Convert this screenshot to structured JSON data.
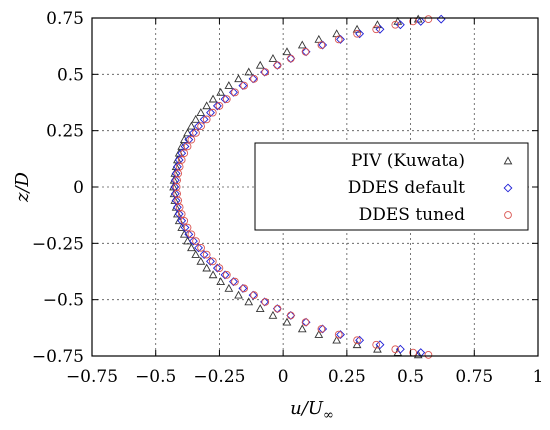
{
  "chart_data": {
    "type": "scatter",
    "title": "",
    "xlabel_main": "u/U",
    "xlabel_sub": "∞",
    "ylabel": "z/D",
    "xlim": [
      -0.75,
      1
    ],
    "ylim": [
      -0.75,
      0.75
    ],
    "x_ticks": [
      -0.75,
      -0.5,
      -0.25,
      0,
      0.25,
      0.5,
      0.75,
      1
    ],
    "x_tick_labels": [
      "−0.75",
      "−0.5",
      "−0.25",
      "0",
      "0.25",
      "0.5",
      "0.75",
      "1"
    ],
    "y_ticks": [
      -0.75,
      -0.5,
      -0.25,
      0,
      0.25,
      0.5,
      0.75
    ],
    "y_tick_labels": [
      "−0.75",
      "−0.5",
      "−0.25",
      "0",
      "0.25",
      "0.5",
      "0.75"
    ],
    "grid": true,
    "legend_position": "right",
    "series": [
      {
        "name": "PIV (Kuwata)",
        "marker": "triangle",
        "color": "#333333",
        "points": [
          [
            -0.43,
            0.0
          ],
          [
            -0.428,
            0.03
          ],
          [
            -0.428,
            -0.03
          ],
          [
            -0.425,
            0.06
          ],
          [
            -0.425,
            -0.06
          ],
          [
            -0.42,
            0.09
          ],
          [
            -0.42,
            -0.09
          ],
          [
            -0.415,
            0.12
          ],
          [
            -0.415,
            -0.12
          ],
          [
            -0.408,
            0.15
          ],
          [
            -0.408,
            -0.15
          ],
          [
            -0.398,
            0.18
          ],
          [
            -0.398,
            -0.18
          ],
          [
            -0.388,
            0.21
          ],
          [
            -0.388,
            -0.21
          ],
          [
            -0.375,
            0.24
          ],
          [
            -0.375,
            -0.24
          ],
          [
            -0.36,
            0.27
          ],
          [
            -0.36,
            -0.27
          ],
          [
            -0.343,
            0.3
          ],
          [
            -0.343,
            -0.3
          ],
          [
            -0.323,
            0.33
          ],
          [
            -0.323,
            -0.33
          ],
          [
            -0.3,
            0.36
          ],
          [
            -0.3,
            -0.36
          ],
          [
            -0.275,
            0.39
          ],
          [
            -0.275,
            -0.39
          ],
          [
            -0.245,
            0.42
          ],
          [
            -0.245,
            -0.42
          ],
          [
            -0.213,
            0.45
          ],
          [
            -0.213,
            -0.45
          ],
          [
            -0.175,
            0.48
          ],
          [
            -0.175,
            -0.48
          ],
          [
            -0.135,
            0.51
          ],
          [
            -0.135,
            -0.51
          ],
          [
            -0.09,
            0.54
          ],
          [
            -0.09,
            -0.54
          ],
          [
            -0.04,
            0.57
          ],
          [
            -0.04,
            -0.57
          ],
          [
            0.015,
            0.6
          ],
          [
            0.015,
            -0.6
          ],
          [
            0.075,
            0.63
          ],
          [
            0.075,
            -0.63
          ],
          [
            0.14,
            0.655
          ],
          [
            0.14,
            -0.655
          ],
          [
            0.21,
            0.68
          ],
          [
            0.21,
            -0.68
          ],
          [
            0.29,
            0.7
          ],
          [
            0.29,
            -0.7
          ],
          [
            0.37,
            0.72
          ],
          [
            0.37,
            -0.72
          ],
          [
            0.45,
            0.735
          ],
          [
            0.45,
            -0.735
          ],
          [
            0.53,
            0.745
          ],
          [
            0.53,
            -0.745
          ]
        ]
      },
      {
        "name": "DDES default",
        "marker": "diamond",
        "color": "#1f1fd6",
        "points": [
          [
            -0.425,
            0.0
          ],
          [
            -0.423,
            0.03
          ],
          [
            -0.423,
            -0.03
          ],
          [
            -0.42,
            0.06
          ],
          [
            -0.42,
            -0.06
          ],
          [
            -0.415,
            0.09
          ],
          [
            -0.415,
            -0.09
          ],
          [
            -0.408,
            0.12
          ],
          [
            -0.408,
            -0.12
          ],
          [
            -0.398,
            0.15
          ],
          [
            -0.398,
            -0.15
          ],
          [
            -0.385,
            0.18
          ],
          [
            -0.385,
            -0.18
          ],
          [
            -0.37,
            0.21
          ],
          [
            -0.37,
            -0.21
          ],
          [
            -0.352,
            0.24
          ],
          [
            -0.352,
            -0.24
          ],
          [
            -0.332,
            0.27
          ],
          [
            -0.332,
            -0.27
          ],
          [
            -0.31,
            0.3
          ],
          [
            -0.31,
            -0.3
          ],
          [
            -0.285,
            0.33
          ],
          [
            -0.285,
            -0.33
          ],
          [
            -0.258,
            0.36
          ],
          [
            -0.258,
            -0.36
          ],
          [
            -0.228,
            0.39
          ],
          [
            -0.228,
            -0.39
          ],
          [
            -0.195,
            0.42
          ],
          [
            -0.195,
            -0.42
          ],
          [
            -0.158,
            0.45
          ],
          [
            -0.158,
            -0.45
          ],
          [
            -0.118,
            0.48
          ],
          [
            -0.118,
            -0.48
          ],
          [
            -0.073,
            0.51
          ],
          [
            -0.073,
            -0.51
          ],
          [
            -0.023,
            0.54
          ],
          [
            -0.023,
            -0.54
          ],
          [
            0.03,
            0.57
          ],
          [
            0.03,
            -0.57
          ],
          [
            0.09,
            0.6
          ],
          [
            0.09,
            -0.6
          ],
          [
            0.155,
            0.63
          ],
          [
            0.155,
            -0.63
          ],
          [
            0.225,
            0.655
          ],
          [
            0.225,
            -0.655
          ],
          [
            0.3,
            0.68
          ],
          [
            0.3,
            -0.68
          ],
          [
            0.38,
            0.7
          ],
          [
            0.38,
            -0.7
          ],
          [
            0.46,
            0.72
          ],
          [
            0.46,
            -0.72
          ],
          [
            0.54,
            0.735
          ],
          [
            0.54,
            -0.735
          ],
          [
            0.62,
            0.745
          ]
        ]
      },
      {
        "name": "DDES tuned",
        "marker": "circle",
        "color": "#d9534f",
        "points": [
          [
            -0.418,
            0.0
          ],
          [
            -0.416,
            0.03
          ],
          [
            -0.416,
            -0.03
          ],
          [
            -0.412,
            0.06
          ],
          [
            -0.412,
            -0.06
          ],
          [
            -0.406,
            0.09
          ],
          [
            -0.406,
            -0.09
          ],
          [
            -0.398,
            0.12
          ],
          [
            -0.398,
            -0.12
          ],
          [
            -0.388,
            0.15
          ],
          [
            -0.388,
            -0.15
          ],
          [
            -0.375,
            0.18
          ],
          [
            -0.375,
            -0.18
          ],
          [
            -0.36,
            0.21
          ],
          [
            -0.36,
            -0.21
          ],
          [
            -0.342,
            0.24
          ],
          [
            -0.342,
            -0.24
          ],
          [
            -0.322,
            0.27
          ],
          [
            -0.322,
            -0.27
          ],
          [
            -0.3,
            0.3
          ],
          [
            -0.3,
            -0.3
          ],
          [
            -0.276,
            0.33
          ],
          [
            -0.276,
            -0.33
          ],
          [
            -0.25,
            0.36
          ],
          [
            -0.25,
            -0.36
          ],
          [
            -0.221,
            0.39
          ],
          [
            -0.221,
            -0.39
          ],
          [
            -0.189,
            0.42
          ],
          [
            -0.189,
            -0.42
          ],
          [
            -0.153,
            0.45
          ],
          [
            -0.153,
            -0.45
          ],
          [
            -0.114,
            0.48
          ],
          [
            -0.114,
            -0.48
          ],
          [
            -0.07,
            0.51
          ],
          [
            -0.07,
            -0.51
          ],
          [
            -0.022,
            0.54
          ],
          [
            -0.022,
            -0.54
          ],
          [
            0.03,
            0.57
          ],
          [
            0.03,
            -0.57
          ],
          [
            0.088,
            0.6
          ],
          [
            0.088,
            -0.6
          ],
          [
            0.15,
            0.63
          ],
          [
            0.15,
            -0.63
          ],
          [
            0.218,
            0.655
          ],
          [
            0.218,
            -0.655
          ],
          [
            0.29,
            0.68
          ],
          [
            0.29,
            -0.68
          ],
          [
            0.365,
            0.7
          ],
          [
            0.365,
            -0.7
          ],
          [
            0.44,
            0.72
          ],
          [
            0.44,
            -0.72
          ],
          [
            0.51,
            0.735
          ],
          [
            0.51,
            -0.735
          ],
          [
            0.57,
            0.745
          ],
          [
            0.57,
            -0.745
          ]
        ]
      }
    ]
  }
}
